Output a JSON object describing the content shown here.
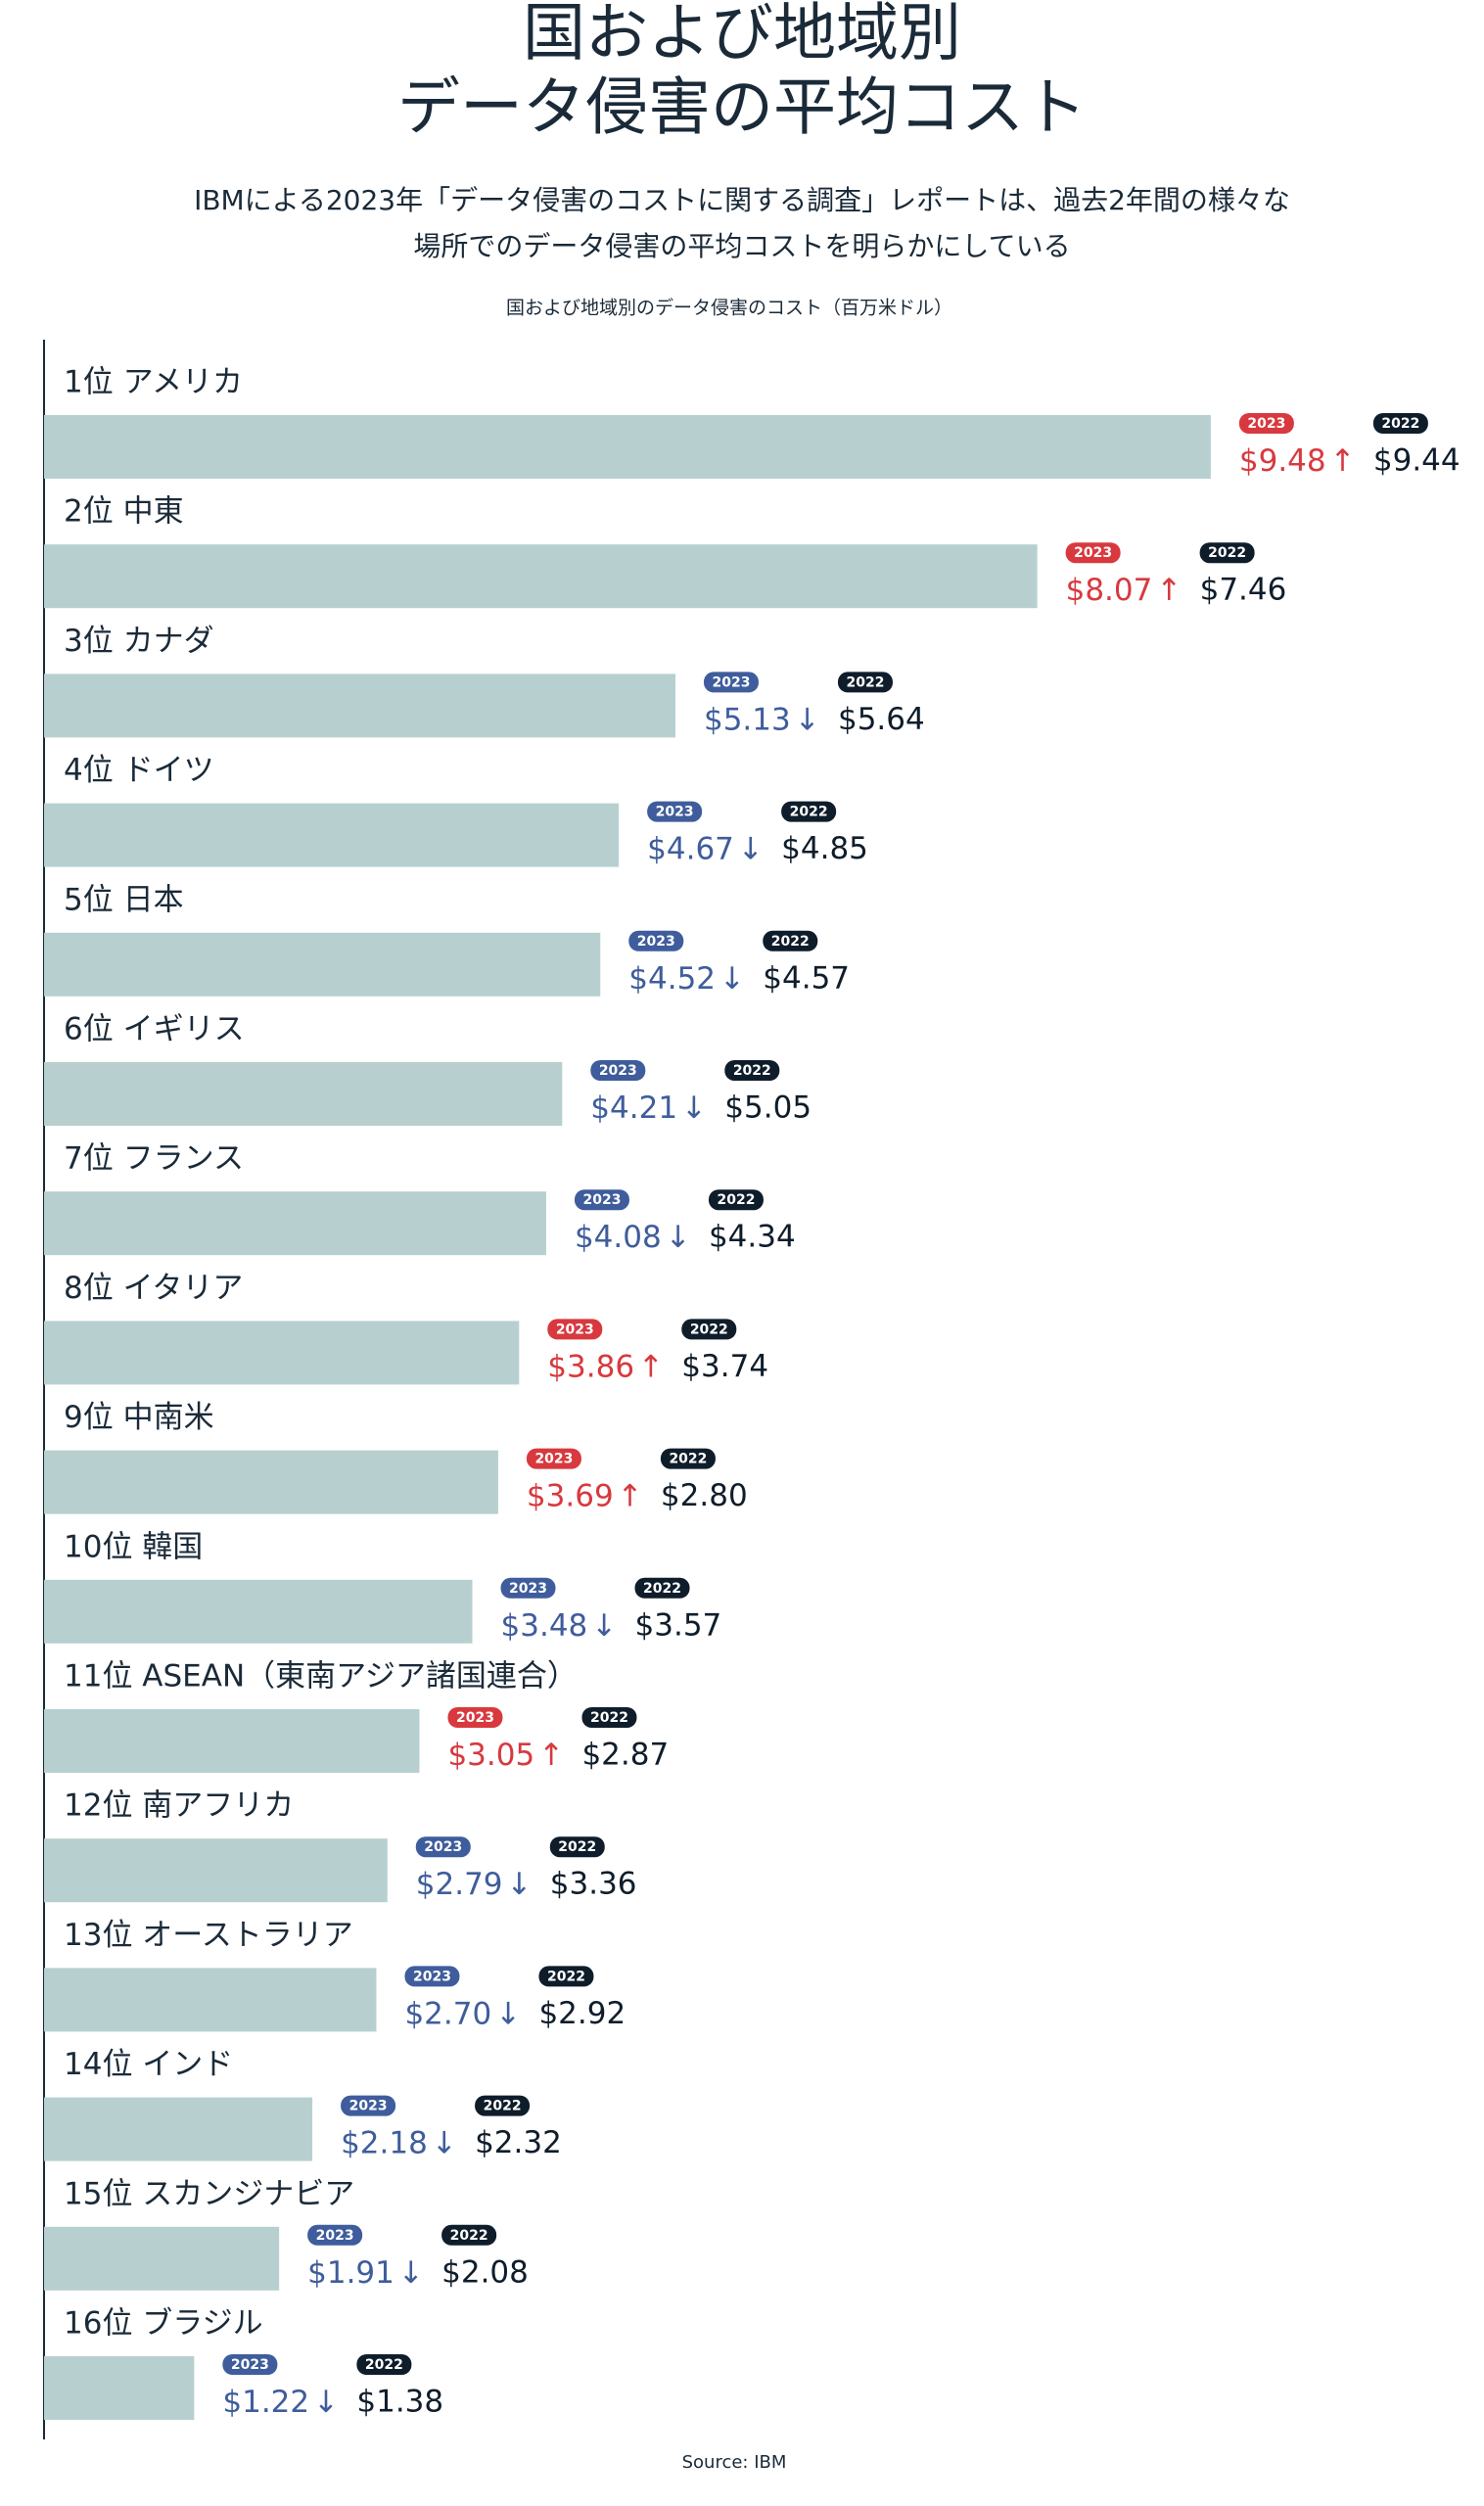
{
  "chart_data": {
    "type": "bar",
    "orientation": "horizontal",
    "title": [
      "国および地域別",
      "データ侵害の平均コスト"
    ],
    "subtitle": [
      "IBMによる2023年「データ侵害のコストに関する調査」レポートは、過去2年間の様々な",
      "場所でのデータ侵害の平均コストを明らかにしている"
    ],
    "axis_label": "国および地域別のデータ侵害のコスト（百万米ドル）",
    "source": "Source: IBM",
    "categories": [
      "1位 アメリカ",
      "2位 中東",
      "3位 カナダ",
      "4位 ドイツ",
      "5位 日本",
      "6位 イギリス",
      "7位 フランス",
      "8位 イタリア",
      "9位 中南米",
      "10位 韓国",
      "11位 ASEAN（東南アジア諸国連合）",
      "12位 南アフリカ",
      "13位 オーストラリア",
      "14位 インド",
      "15位 スカンジナビア",
      "16位 ブラジル"
    ],
    "xlim": [
      0,
      11.7
    ],
    "bar_color": "#b7d0cf",
    "series": [
      {
        "name": "2023",
        "values": [
          9.48,
          8.07,
          5.13,
          4.67,
          4.52,
          4.21,
          4.08,
          3.86,
          3.69,
          3.48,
          3.05,
          2.79,
          2.7,
          2.18,
          1.91,
          1.22
        ],
        "value_labels": [
          "$9.48",
          "$8.07",
          "$5.13",
          "$4.67",
          "$4.52",
          "$4.21",
          "$4.08",
          "$3.86",
          "$3.69",
          "$3.48",
          "$3.05",
          "$2.79",
          "$2.70",
          "$2.18",
          "$1.91",
          "$1.22"
        ],
        "trends": [
          "↑",
          "↑",
          "↓",
          "↓",
          "↓",
          "↓",
          "↓",
          "↑",
          "↑",
          "↓",
          "↑",
          "↓",
          "↓",
          "↓",
          "↓",
          "↓"
        ],
        "colors": [
          "#d8393e",
          "#d8393e",
          "#3f5d9c",
          "#3f5d9c",
          "#3f5d9c",
          "#3f5d9c",
          "#3f5d9c",
          "#d8393e",
          "#d8393e",
          "#3f5d9c",
          "#d8393e",
          "#3f5d9c",
          "#3f5d9c",
          "#3f5d9c",
          "#3f5d9c",
          "#3f5d9c"
        ]
      },
      {
        "name": "2022",
        "color": "#0f1d2b",
        "values": [
          9.44,
          7.46,
          5.64,
          4.85,
          4.57,
          5.05,
          4.34,
          3.74,
          2.8,
          3.57,
          2.87,
          3.36,
          2.92,
          2.32,
          2.08,
          1.38
        ],
        "value_labels": [
          "$9.44",
          "$7.46",
          "$5.64",
          "$4.85",
          "$4.57",
          "$5.05",
          "$4.34",
          "$3.74",
          "$2.80",
          "$3.57",
          "$2.87",
          "$3.36",
          "$2.92",
          "$2.32",
          "$2.08",
          "$1.38"
        ]
      }
    ]
  }
}
